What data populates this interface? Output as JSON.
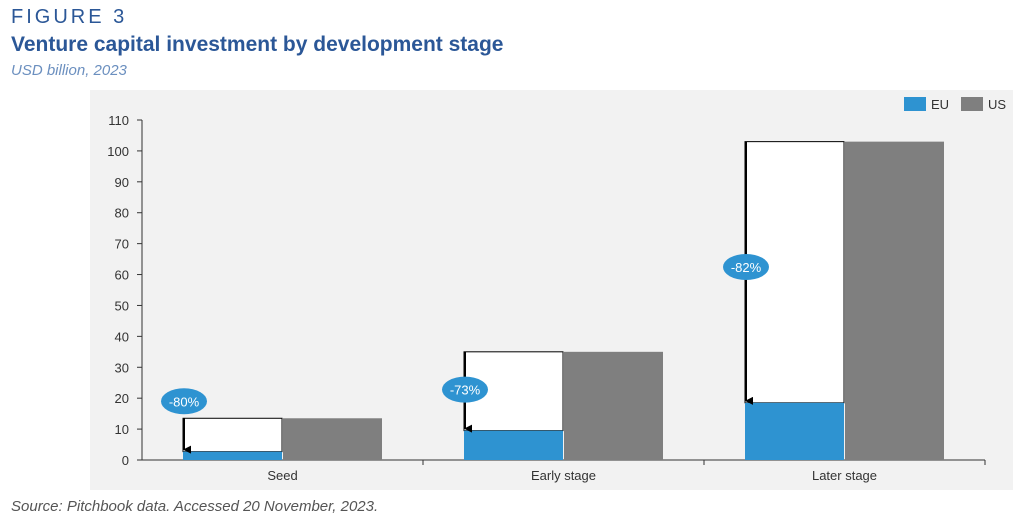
{
  "header": {
    "figure_label": "FIGURE 3",
    "title": "Venture capital investment by development stage",
    "subtitle": "USD billion, 2023"
  },
  "footer": {
    "source": "Source: Pitchbook data. Accessed 20 November, 2023."
  },
  "colors": {
    "eu": "#2e93d1",
    "us": "#7f7f7f",
    "callout": "#2e93d1",
    "title": "#2b5797"
  },
  "chart_data": {
    "type": "bar",
    "categories": [
      "Seed",
      "Early stage",
      "Later stage"
    ],
    "series": [
      {
        "name": "EU",
        "values": [
          2.7,
          9.5,
          18.5
        ]
      },
      {
        "name": "US",
        "values": [
          13.5,
          35,
          103
        ]
      }
    ],
    "annotations": [
      "-80%",
      "-73%",
      "-82%"
    ],
    "ylim": [
      0,
      110
    ],
    "yticks": [
      0,
      10,
      20,
      30,
      40,
      50,
      60,
      70,
      80,
      90,
      100,
      110
    ],
    "legend_position": "top-right",
    "grid": false
  }
}
